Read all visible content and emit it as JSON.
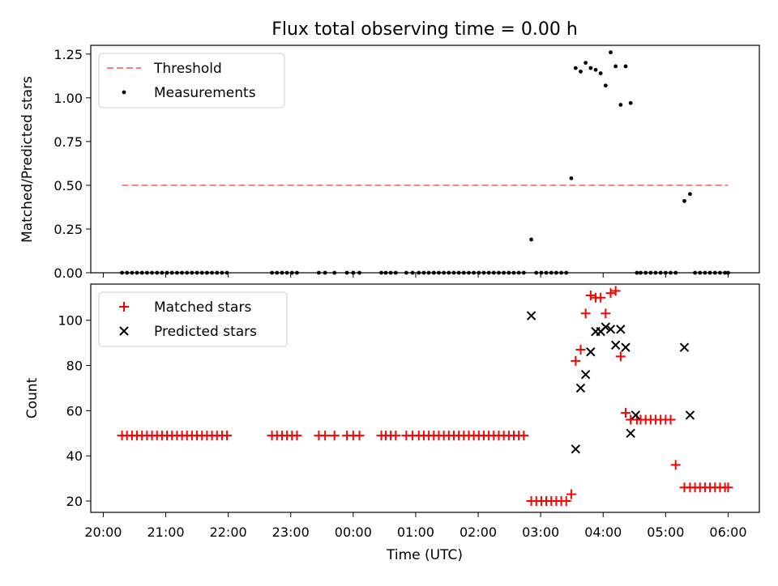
{
  "chart_data": {
    "title": "Flux total observing time = 0.00 h",
    "x_label": "Time (UTC)",
    "x_unit": "hours after 20:00 UTC",
    "x_range": [
      -0.2,
      10.5
    ],
    "x_ticks": [
      {
        "value": 0,
        "label": "20:00"
      },
      {
        "value": 1,
        "label": "21:00"
      },
      {
        "value": 2,
        "label": "22:00"
      },
      {
        "value": 3,
        "label": "23:00"
      },
      {
        "value": 4,
        "label": "00:00"
      },
      {
        "value": 5,
        "label": "01:00"
      },
      {
        "value": 6,
        "label": "02:00"
      },
      {
        "value": 7,
        "label": "03:00"
      },
      {
        "value": 8,
        "label": "04:00"
      },
      {
        "value": 9,
        "label": "05:00"
      },
      {
        "value": 10,
        "label": "06:00"
      }
    ],
    "panels": [
      {
        "type": "scatter",
        "y_label": "Matched/Predicted stars",
        "y_range": [
          0,
          1.3
        ],
        "y_ticks": [
          "0.00",
          "0.25",
          "0.50",
          "0.75",
          "1.00",
          "1.25"
        ],
        "series": [
          {
            "name": "Threshold",
            "kind": "line",
            "style": "dashed",
            "color": "#ff7f7f",
            "x": [
              0.3,
              10.0
            ],
            "y": [
              0.5,
              0.5
            ]
          },
          {
            "name": "Measurements",
            "kind": "scatter",
            "marker": "dot",
            "color": "#000000",
            "x": [
              0.3,
              0.38,
              0.46,
              0.54,
              0.62,
              0.7,
              0.78,
              0.86,
              0.94,
              1.02,
              1.1,
              1.18,
              1.26,
              1.34,
              1.42,
              1.5,
              1.58,
              1.66,
              1.74,
              1.82,
              1.9,
              1.98,
              2.7,
              2.78,
              2.86,
              2.94,
              3.02,
              3.1,
              3.45,
              3.55,
              3.7,
              3.9,
              4.0,
              4.1,
              4.45,
              4.52,
              4.6,
              4.68,
              4.85,
              4.95,
              5.05,
              5.13,
              5.21,
              5.29,
              5.37,
              5.45,
              5.53,
              5.61,
              5.69,
              5.77,
              5.85,
              5.93,
              6.01,
              6.09,
              6.17,
              6.25,
              6.33,
              6.41,
              6.49,
              6.57,
              6.65,
              6.73,
              6.85,
              6.93,
              7.01,
              7.09,
              7.17,
              7.25,
              7.33,
              7.41,
              7.49,
              7.56,
              7.64,
              7.72,
              7.8,
              7.88,
              7.96,
              8.04,
              8.12,
              8.2,
              8.28,
              8.36,
              8.44,
              8.54,
              8.6,
              8.68,
              8.76,
              8.84,
              8.92,
              9.0,
              9.08,
              9.16,
              9.3,
              9.39,
              9.47,
              9.55,
              9.63,
              9.71,
              9.79,
              9.87,
              9.95,
              10.0
            ],
            "y": [
              0,
              0,
              0,
              0,
              0,
              0,
              0,
              0,
              0,
              0,
              0,
              0,
              0,
              0,
              0,
              0,
              0,
              0,
              0,
              0,
              0,
              0,
              0,
              0,
              0,
              0,
              0,
              0,
              0,
              0,
              0,
              0,
              0,
              0,
              0,
              0,
              0,
              0,
              0,
              0,
              0,
              0,
              0,
              0,
              0,
              0,
              0,
              0,
              0,
              0,
              0,
              0,
              0,
              0,
              0,
              0,
              0,
              0,
              0,
              0,
              0,
              0,
              0.19,
              0,
              0,
              0,
              0,
              0,
              0,
              0,
              0.54,
              1.17,
              1.15,
              1.2,
              1.17,
              1.16,
              1.14,
              1.07,
              1.26,
              1.18,
              0.96,
              1.18,
              0.97,
              0,
              0,
              0,
              0,
              0,
              0,
              0,
              0,
              0,
              0.41,
              0.45,
              0,
              0,
              0,
              0,
              0,
              0,
              0,
              0
            ]
          }
        ],
        "legend": {
          "position": "top-left",
          "entries": [
            "Threshold",
            "Measurements"
          ]
        }
      },
      {
        "type": "scatter",
        "y_label": "Count",
        "y_range": [
          15,
          116
        ],
        "y_ticks": [
          "20",
          "40",
          "60",
          "80",
          "100"
        ],
        "series": [
          {
            "name": "Matched stars",
            "kind": "scatter",
            "marker": "plus",
            "color": "#ff0000",
            "x": [
              0.3,
              0.38,
              0.46,
              0.54,
              0.62,
              0.7,
              0.78,
              0.86,
              0.94,
              1.02,
              1.1,
              1.18,
              1.26,
              1.34,
              1.42,
              1.5,
              1.58,
              1.66,
              1.74,
              1.82,
              1.9,
              1.98,
              2.7,
              2.78,
              2.86,
              2.94,
              3.02,
              3.1,
              3.45,
              3.55,
              3.7,
              3.9,
              4.0,
              4.1,
              4.45,
              4.52,
              4.6,
              4.68,
              4.85,
              4.95,
              5.05,
              5.13,
              5.21,
              5.29,
              5.37,
              5.45,
              5.53,
              5.61,
              5.69,
              5.77,
              5.85,
              5.93,
              6.01,
              6.09,
              6.17,
              6.25,
              6.33,
              6.41,
              6.49,
              6.57,
              6.65,
              6.73,
              6.85,
              6.93,
              7.01,
              7.09,
              7.17,
              7.25,
              7.33,
              7.41,
              7.49,
              7.56,
              7.64,
              7.72,
              7.8,
              7.88,
              7.96,
              8.04,
              8.12,
              8.2,
              8.28,
              8.36,
              8.44,
              8.54,
              8.6,
              8.68,
              8.76,
              8.84,
              8.92,
              9.0,
              9.08,
              9.16,
              9.3,
              9.39,
              9.47,
              9.55,
              9.63,
              9.71,
              9.79,
              9.87,
              9.95,
              10.0
            ],
            "y": [
              49,
              49,
              49,
              49,
              49,
              49,
              49,
              49,
              49,
              49,
              49,
              49,
              49,
              49,
              49,
              49,
              49,
              49,
              49,
              49,
              49,
              49,
              49,
              49,
              49,
              49,
              49,
              49,
              49,
              49,
              49,
              49,
              49,
              49,
              49,
              49,
              49,
              49,
              49,
              49,
              49,
              49,
              49,
              49,
              49,
              49,
              49,
              49,
              49,
              49,
              49,
              49,
              49,
              49,
              49,
              49,
              49,
              49,
              49,
              49,
              49,
              49,
              20,
              20,
              20,
              20,
              20,
              20,
              20,
              20,
              23,
              82,
              87,
              103,
              111,
              110,
              110,
              103,
              112,
              113,
              84,
              59,
              56,
              56,
              56,
              56,
              56,
              56,
              56,
              56,
              56,
              36,
              26,
              26,
              26,
              26,
              26,
              26,
              26,
              26,
              26,
              26
            ]
          },
          {
            "name": "Predicted stars",
            "kind": "scatter",
            "marker": "x",
            "color": "#000000",
            "x": [
              6.85,
              7.56,
              7.64,
              7.72,
              7.8,
              7.88,
              7.96,
              8.04,
              8.12,
              8.2,
              8.28,
              8.36,
              8.44,
              8.52,
              9.3,
              9.39
            ],
            "y": [
              102,
              43,
              70,
              76,
              86,
              95,
              95,
              97,
              96,
              89,
              96,
              88,
              50,
              58,
              88,
              58
            ]
          }
        ],
        "legend": {
          "position": "top-left",
          "entries": [
            "Matched stars",
            "Predicted stars"
          ]
        }
      }
    ]
  }
}
